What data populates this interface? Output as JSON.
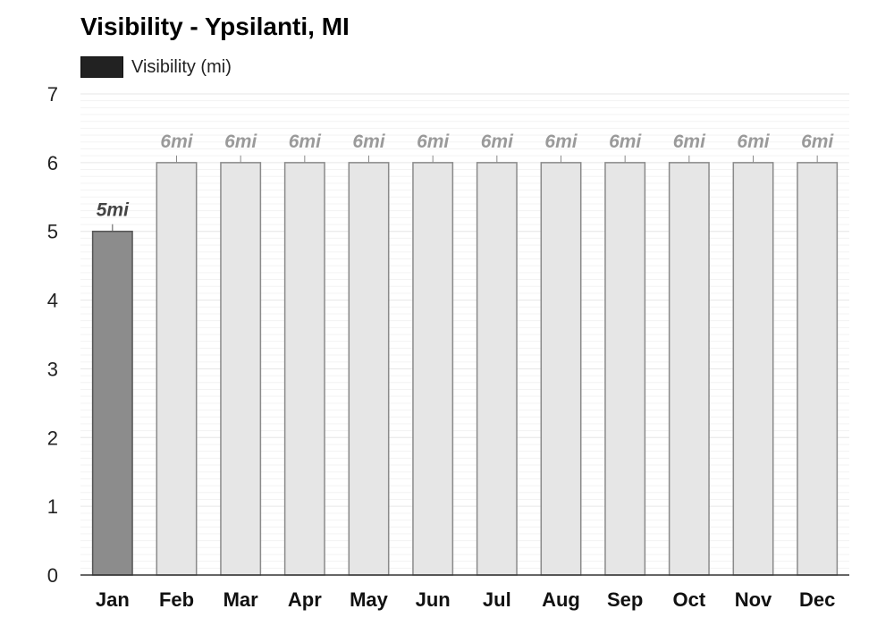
{
  "chart_data": {
    "type": "bar",
    "title": "Visibility - Ypsilanti, MI",
    "xlabel": "",
    "ylabel": "",
    "ylim": [
      0,
      7
    ],
    "y_ticks": [
      0,
      1,
      2,
      3,
      4,
      5,
      6,
      7
    ],
    "grid": true,
    "legend_position": "top-left",
    "categories": [
      "Jan",
      "Feb",
      "Mar",
      "Apr",
      "May",
      "Jun",
      "Jul",
      "Aug",
      "Sep",
      "Oct",
      "Nov",
      "Dec"
    ],
    "series": [
      {
        "name": "Visibility (mi)",
        "values": [
          5,
          6,
          6,
          6,
          6,
          6,
          6,
          6,
          6,
          6,
          6,
          6
        ],
        "labels": [
          "5mi",
          "6mi",
          "6mi",
          "6mi",
          "6mi",
          "6mi",
          "6mi",
          "6mi",
          "6mi",
          "6mi",
          "6mi",
          "6mi"
        ]
      }
    ],
    "colors": {
      "legend_swatch": "#222222",
      "highlight_bar": "#8c8c8c",
      "highlight_bar_border": "#555555",
      "highlight_label": "#444444",
      "bar": "#e6e6e6",
      "bar_border": "#8a8a8a",
      "bar_label": "#9a9a9a",
      "grid_major": "#e6e6e6",
      "grid_minor": "#f3f3f3",
      "axis": "#333333"
    }
  }
}
